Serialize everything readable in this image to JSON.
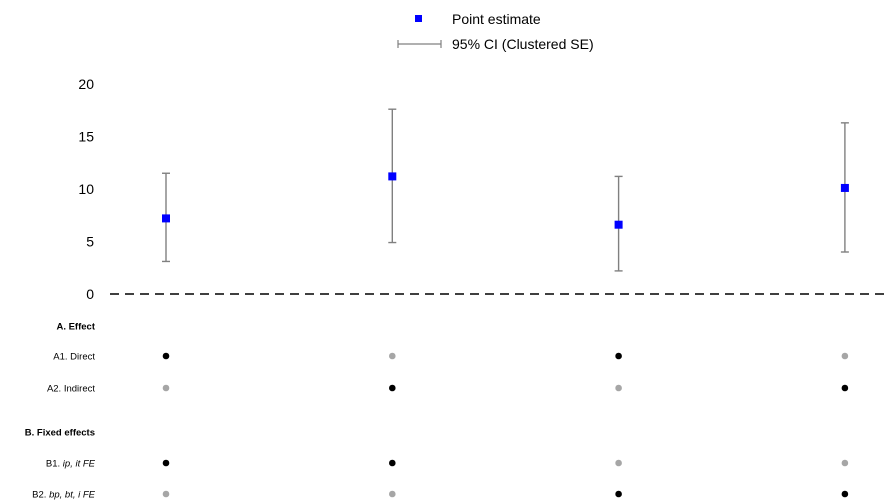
{
  "chart_data": {
    "type": "scatter",
    "title": "",
    "xlabel": "",
    "ylabel": "",
    "ylim": [
      0,
      20
    ],
    "yticks": [
      0,
      5,
      10,
      15,
      20
    ],
    "grid": false,
    "legend": {
      "placement": "top-center",
      "entries": [
        {
          "name": "Point estimate",
          "marker": "square",
          "color": "#0000ff"
        },
        {
          "name": "95% CI (Clustered SE)",
          "marker": "errorbar",
          "color": "#808080"
        }
      ]
    },
    "reference_line": {
      "y": 0,
      "style": "dashed"
    },
    "series": [
      {
        "name": "Point estimate",
        "x": [
          1,
          2,
          3,
          4
        ],
        "y": [
          7.2,
          11.2,
          6.6,
          10.1
        ],
        "ci_low": [
          3.1,
          4.9,
          2.2,
          4.0
        ],
        "ci_high": [
          11.5,
          17.6,
          11.2,
          16.3
        ]
      }
    ],
    "specification": {
      "sections": [
        {
          "title": "A. Effect",
          "rows": [
            {
              "label": "A1. Direct",
              "active": [
                true,
                false,
                true,
                false
              ]
            },
            {
              "label": "A2. Indirect",
              "active": [
                false,
                true,
                false,
                true
              ]
            }
          ]
        },
        {
          "title": "B. Fixed effects",
          "rows": [
            {
              "label_prefix": "B1. ",
              "label_italic": "ip, it FE",
              "active": [
                true,
                true,
                false,
                false
              ]
            },
            {
              "label_prefix": "B2. ",
              "label_italic": "bp, bt, i FE",
              "active": [
                false,
                false,
                true,
                true
              ]
            }
          ]
        }
      ]
    },
    "colors": {
      "point": "#0000ff",
      "ci": "#808080",
      "dot_on": "#000000",
      "dot_off": "#a6a6a6",
      "zero_line": "#000000"
    }
  }
}
